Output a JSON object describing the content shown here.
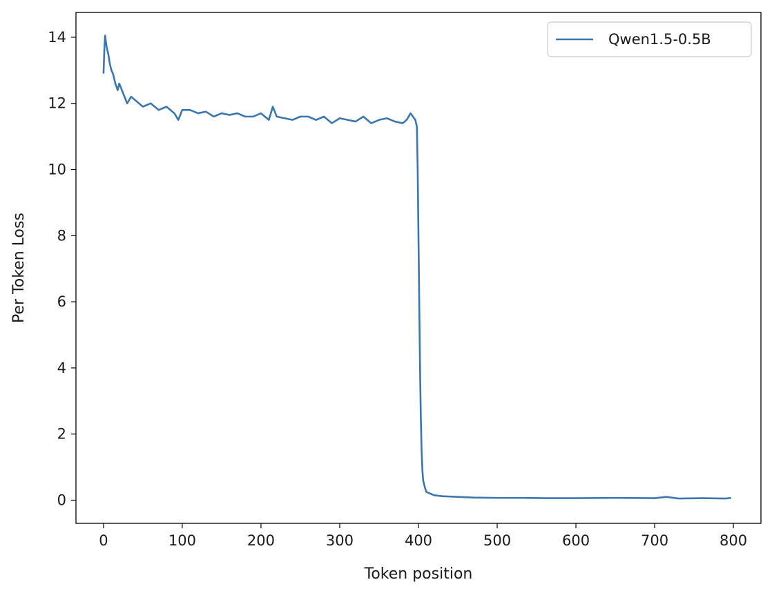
{
  "chart_data": {
    "type": "line",
    "title": "",
    "xlabel": "Token position",
    "ylabel": "Per Token Loss",
    "xlim": [
      -35,
      835
    ],
    "ylim": [
      -0.7,
      14.75
    ],
    "xticks": [
      0,
      100,
      200,
      300,
      400,
      500,
      600,
      700,
      800
    ],
    "yticks": [
      0,
      2,
      4,
      6,
      8,
      10,
      12,
      14
    ],
    "grid": false,
    "legend_position": "top-right",
    "series": [
      {
        "name": "Qwen1.5-0.5B",
        "color": "#3a76b0",
        "x": [
          0,
          1,
          2,
          4,
          6,
          8,
          10,
          12,
          15,
          18,
          20,
          25,
          30,
          35,
          40,
          50,
          60,
          70,
          80,
          90,
          95,
          100,
          110,
          120,
          130,
          140,
          150,
          160,
          170,
          180,
          190,
          200,
          210,
          215,
          220,
          230,
          240,
          250,
          260,
          270,
          280,
          290,
          300,
          310,
          320,
          330,
          340,
          350,
          360,
          370,
          380,
          385,
          390,
          393,
          396,
          398,
          399,
          400,
          401,
          402,
          403,
          404,
          405,
          406,
          408,
          410,
          415,
          420,
          430,
          450,
          470,
          500,
          530,
          560,
          600,
          650,
          700,
          715,
          730,
          760,
          790,
          797
        ],
        "y": [
          12.9,
          13.6,
          14.05,
          13.7,
          13.5,
          13.2,
          13.0,
          12.9,
          12.6,
          12.4,
          12.6,
          12.3,
          12.0,
          12.2,
          12.1,
          11.9,
          12.0,
          11.8,
          11.9,
          11.7,
          11.5,
          11.8,
          11.8,
          11.7,
          11.75,
          11.6,
          11.7,
          11.65,
          11.7,
          11.6,
          11.6,
          11.7,
          11.5,
          11.9,
          11.6,
          11.55,
          11.5,
          11.6,
          11.6,
          11.5,
          11.6,
          11.4,
          11.55,
          11.5,
          11.45,
          11.6,
          11.4,
          11.5,
          11.55,
          11.45,
          11.4,
          11.5,
          11.7,
          11.6,
          11.5,
          11.3,
          10.0,
          8.0,
          6.0,
          4.0,
          2.5,
          1.5,
          0.9,
          0.6,
          0.4,
          0.25,
          0.2,
          0.15,
          0.12,
          0.1,
          0.08,
          0.07,
          0.07,
          0.06,
          0.06,
          0.07,
          0.06,
          0.1,
          0.05,
          0.06,
          0.05,
          0.07
        ]
      }
    ]
  }
}
